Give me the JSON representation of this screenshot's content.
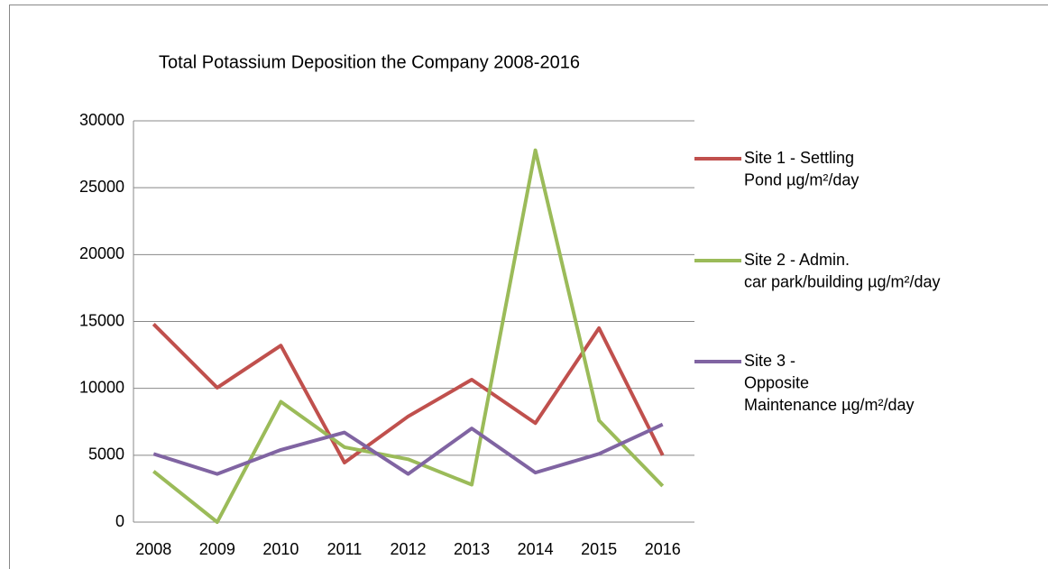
{
  "chart_data": {
    "type": "line",
    "title": "Total Potassium Deposition the Company 2008-2016",
    "categories": [
      "2008",
      "2009",
      "2010",
      "2011",
      "2012",
      "2013",
      "2014",
      "2015",
      "2016"
    ],
    "series": [
      {
        "name": "Site 1 - Settling\nPond µg/m²/day",
        "color": "#c0504d",
        "values": [
          14800,
          10050,
          13200,
          4450,
          7900,
          10650,
          7400,
          14500,
          5000
        ]
      },
      {
        "name": "Site 2 - Admin.\ncar park/building µg/m²/day",
        "color": "#9bbb59",
        "values": [
          3800,
          0,
          9000,
          5600,
          4700,
          2800,
          27800,
          7600,
          2700
        ]
      },
      {
        "name": "Site 3 -\nOpposite\nMaintenance µg/m²/day",
        "color": "#8064a2",
        "values": [
          5100,
          3600,
          5400,
          6700,
          3600,
          7000,
          3700,
          5100,
          7300
        ]
      }
    ],
    "ylim": [
      0,
      30000
    ],
    "yticks": [
      0,
      5000,
      10000,
      15000,
      20000,
      25000,
      30000
    ],
    "grid": true,
    "legend": "right"
  }
}
